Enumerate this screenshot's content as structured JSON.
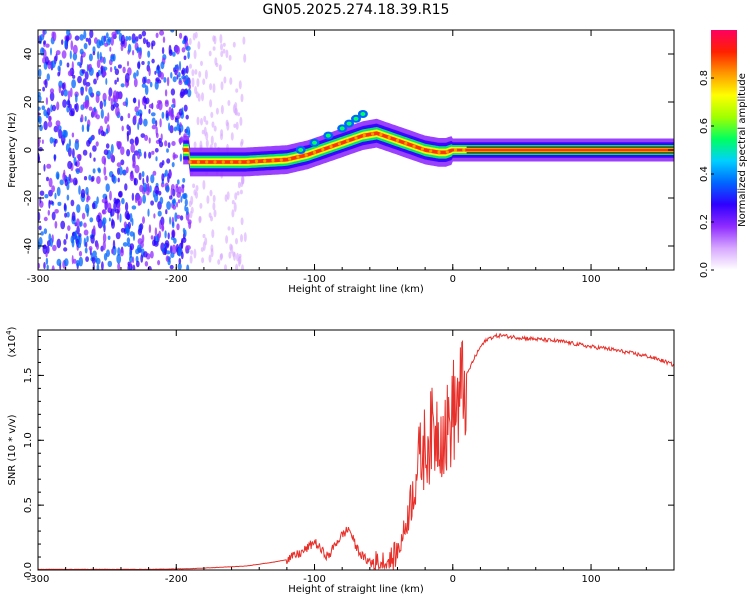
{
  "title": "GN05.2025.274.18.39.R15",
  "chart_data": [
    {
      "type": "heatmap",
      "title": "GN05.2025.274.18.39.R15",
      "xlabel": "Height of straight line (km)",
      "ylabel": "Frequency (Hz)",
      "xlim": [
        -300,
        160
      ],
      "ylim": [
        -50,
        50
      ],
      "x_ticks": [
        -300,
        -200,
        -100,
        0,
        100
      ],
      "y_ticks": [
        -40,
        -20,
        0,
        20,
        40
      ],
      "colorbar": {
        "label": "Normalized spectral amplitude",
        "range": [
          0,
          1
        ],
        "ticks": [
          "0.0",
          "0.2",
          "0.4",
          "0.6",
          "0.8"
        ],
        "colormap": [
          "#ffffff",
          "#d7a8ff",
          "#8f2bff",
          "#2f00ff",
          "#0066ff",
          "#00d0ff",
          "#00ff60",
          "#a0ff00",
          "#ffff00",
          "#ff9900",
          "#ff2000",
          "#ff0060"
        ]
      },
      "ridge": {
        "x": [
          -190,
          -150,
          -120,
          -105,
          -95,
          -85,
          -75,
          -65,
          -55,
          -45,
          -35,
          -25,
          -20,
          -10,
          -5,
          0,
          10,
          50,
          100,
          160
        ],
        "y": [
          -5,
          -5,
          -4,
          -2,
          0,
          2,
          4,
          6,
          7,
          5,
          3,
          1,
          0,
          -1,
          -1,
          0,
          0,
          0,
          0,
          0
        ]
      },
      "upper_branch": {
        "x": [
          -110,
          -100,
          -90,
          -80,
          -75,
          -70,
          -65
        ],
        "y": [
          0,
          3,
          6,
          9,
          11,
          13,
          15
        ]
      }
    },
    {
      "type": "line",
      "xlabel": "Height of straight line (km)",
      "ylabel": "SNR (10 * v/v)",
      "y_multiplier": "(x10",
      "y_multiplier_exp": "4",
      "xlim": [
        -300,
        160
      ],
      "ylim": [
        0,
        1.85
      ],
      "x_ticks": [
        -300,
        -200,
        -100,
        0,
        100
      ],
      "y_ticks": [
        "0.0",
        "0.5",
        "1.0",
        "1.5"
      ],
      "series_color": "#e8302a",
      "series": [
        {
          "x": [
            -300,
            -260,
            -220,
            -190,
            -170,
            -150,
            -130,
            -120,
            -110,
            -105,
            -100,
            -95,
            -90,
            -85,
            -80,
            -75,
            -70,
            -65,
            -60,
            -55,
            -50,
            -45,
            -40,
            -35,
            -30,
            -25,
            -20,
            -15,
            -10,
            -5,
            0,
            5,
            10,
            15,
            20,
            25,
            30,
            35,
            40,
            50,
            60,
            70,
            80,
            90,
            100,
            110,
            120,
            130,
            140,
            150,
            160
          ],
          "y": [
            0.005,
            0.005,
            0.005,
            0.01,
            0.02,
            0.03,
            0.06,
            0.08,
            0.13,
            0.17,
            0.22,
            0.15,
            0.1,
            0.2,
            0.27,
            0.32,
            0.18,
            0.1,
            0.06,
            0.05,
            0.05,
            0.07,
            0.14,
            0.3,
            0.55,
            0.82,
            0.95,
            1.05,
            1.1,
            1.05,
            1.22,
            1.3,
            1.5,
            1.62,
            1.72,
            1.78,
            1.8,
            1.81,
            1.8,
            1.79,
            1.78,
            1.77,
            1.76,
            1.74,
            1.72,
            1.71,
            1.69,
            1.67,
            1.65,
            1.62,
            1.58
          ]
        }
      ]
    }
  ]
}
